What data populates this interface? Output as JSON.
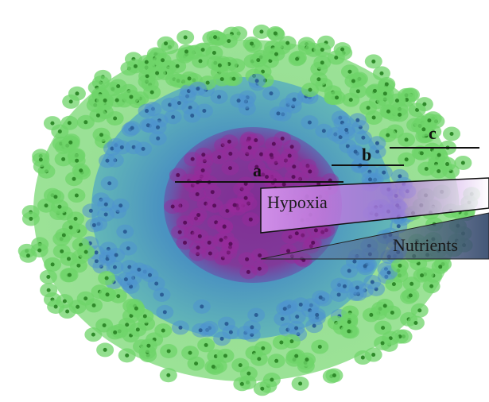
{
  "labels": {
    "a": "a",
    "b": "b",
    "c": "c"
  },
  "wedges": {
    "hypoxia": "Hypoxia",
    "nutrients": "Nutrients"
  }
}
